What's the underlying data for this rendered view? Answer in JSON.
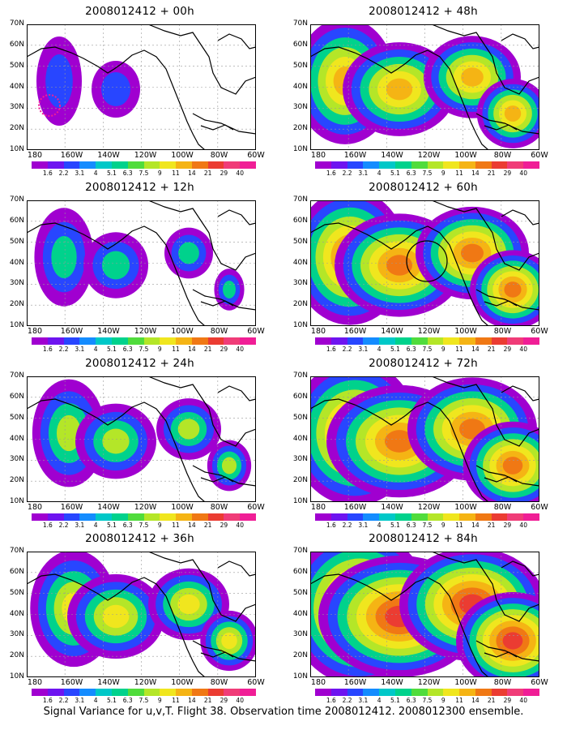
{
  "figure": {
    "caption": "Signal Variance for u,v,T. Flight 38. Observation time 2008012412. 2008012300 ensemble."
  },
  "lat_labels": [
    "70N",
    "60N",
    "50N",
    "40N",
    "30N",
    "20N",
    "10N"
  ],
  "lon_labels": [
    "180",
    "160W",
    "140W",
    "120W",
    "100W",
    "80W",
    "60W"
  ],
  "colorbar": {
    "labels": [
      "1.6",
      "2.2",
      "3.1",
      "4",
      "5.1",
      "6.3",
      "7.5",
      "9",
      "11",
      "14",
      "21",
      "29",
      "40"
    ],
    "colors": [
      "#a000d0",
      "#6e14f0",
      "#2846ff",
      "#148cff",
      "#00c8c8",
      "#00d28c",
      "#50dc3c",
      "#b4e628",
      "#f0e61e",
      "#f5b414",
      "#f07814",
      "#eb3c32",
      "#f03c78",
      "#f01e96"
    ]
  },
  "panels": [
    {
      "id": "p00",
      "title": "2008012412 + 00h",
      "level": 0
    },
    {
      "id": "p48",
      "title": "2008012412 + 48h",
      "level": 4
    },
    {
      "id": "p12",
      "title": "2008012412 + 12h",
      "level": 1
    },
    {
      "id": "p60",
      "title": "2008012412 + 60h",
      "level": 5
    },
    {
      "id": "p24",
      "title": "2008012412 + 24h",
      "level": 2
    },
    {
      "id": "p72",
      "title": "2008012412 + 72h",
      "level": 6
    },
    {
      "id": "p36",
      "title": "2008012412 + 36h",
      "level": 3
    },
    {
      "id": "p84",
      "title": "2008012412 + 84h",
      "level": 7
    }
  ]
}
